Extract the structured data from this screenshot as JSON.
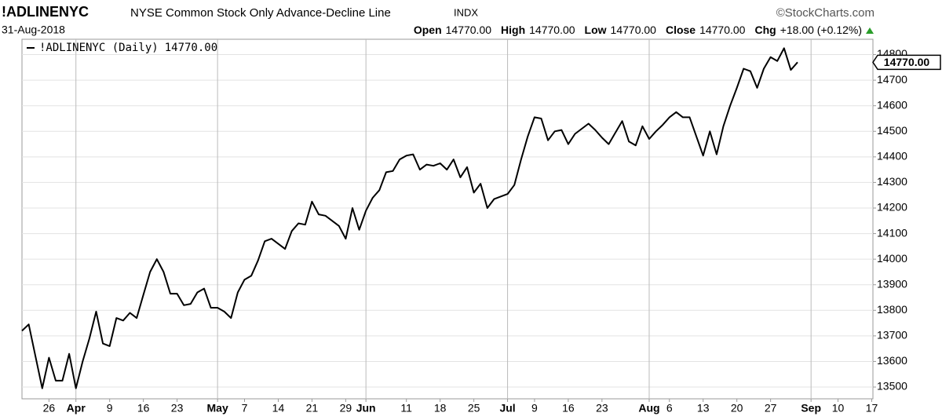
{
  "chart_data": {
    "type": "line",
    "symbol": "!ADLINENYC",
    "title": "NYSE Common Stock Only Advance-Decline Line",
    "exchange": "INDX",
    "copyright": "©StockCharts.com",
    "date": "31-Aug-2018",
    "quote": [
      {
        "label": "Open",
        "value": "14770.00"
      },
      {
        "label": "High",
        "value": "14770.00"
      },
      {
        "label": "Low",
        "value": "14770.00"
      },
      {
        "label": "Close",
        "value": "14770.00"
      },
      {
        "label": "Chg",
        "value": "+18.00 (+0.12%)"
      }
    ],
    "x": [
      "2018-03-20",
      "2018-03-21",
      "2018-03-22",
      "2018-03-23",
      "2018-03-26",
      "2018-03-27",
      "2018-03-28",
      "2018-03-29",
      "2018-04-02",
      "2018-04-03",
      "2018-04-04",
      "2018-04-05",
      "2018-04-06",
      "2018-04-09",
      "2018-04-10",
      "2018-04-11",
      "2018-04-12",
      "2018-04-13",
      "2018-04-16",
      "2018-04-17",
      "2018-04-18",
      "2018-04-19",
      "2018-04-20",
      "2018-04-23",
      "2018-04-24",
      "2018-04-25",
      "2018-04-26",
      "2018-04-27",
      "2018-04-30",
      "2018-05-01",
      "2018-05-02",
      "2018-05-03",
      "2018-05-04",
      "2018-05-07",
      "2018-05-08",
      "2018-05-09",
      "2018-05-10",
      "2018-05-11",
      "2018-05-14",
      "2018-05-15",
      "2018-05-16",
      "2018-05-17",
      "2018-05-18",
      "2018-05-21",
      "2018-05-22",
      "2018-05-23",
      "2018-05-24",
      "2018-05-25",
      "2018-05-29",
      "2018-05-30",
      "2018-05-31",
      "2018-06-01",
      "2018-06-04",
      "2018-06-05",
      "2018-06-06",
      "2018-06-07",
      "2018-06-08",
      "2018-06-11",
      "2018-06-12",
      "2018-06-13",
      "2018-06-14",
      "2018-06-15",
      "2018-06-18",
      "2018-06-19",
      "2018-06-20",
      "2018-06-21",
      "2018-06-22",
      "2018-06-25",
      "2018-06-26",
      "2018-06-27",
      "2018-06-28",
      "2018-06-29",
      "2018-07-02",
      "2018-07-03",
      "2018-07-05",
      "2018-07-06",
      "2018-07-09",
      "2018-07-10",
      "2018-07-11",
      "2018-07-12",
      "2018-07-13",
      "2018-07-16",
      "2018-07-17",
      "2018-07-18",
      "2018-07-19",
      "2018-07-20",
      "2018-07-23",
      "2018-07-24",
      "2018-07-25",
      "2018-07-26",
      "2018-07-27",
      "2018-07-30",
      "2018-07-31",
      "2018-08-01",
      "2018-08-02",
      "2018-08-03",
      "2018-08-06",
      "2018-08-07",
      "2018-08-08",
      "2018-08-09",
      "2018-08-10",
      "2018-08-13",
      "2018-08-14",
      "2018-08-15",
      "2018-08-16",
      "2018-08-17",
      "2018-08-20",
      "2018-08-21",
      "2018-08-22",
      "2018-08-23",
      "2018-08-24",
      "2018-08-27",
      "2018-08-28",
      "2018-08-29",
      "2018-08-30",
      "2018-08-31"
    ],
    "series": [
      {
        "name": "!ADLINENYC (Daily)",
        "color": "#000000",
        "last_label": "14770.00",
        "values": [
          13720,
          13745,
          13620,
          13495,
          13615,
          13525,
          13525,
          13630,
          13495,
          13600,
          13690,
          13795,
          13670,
          13660,
          13770,
          13760,
          13790,
          13770,
          13860,
          13950,
          14000,
          13950,
          13865,
          13865,
          13820,
          13825,
          13870,
          13885,
          13810,
          13810,
          13795,
          13770,
          13870,
          13920,
          13935,
          13995,
          14070,
          14080,
          14060,
          14040,
          14110,
          14140,
          14135,
          14225,
          14175,
          14170,
          14150,
          14130,
          14080,
          14200,
          14115,
          14190,
          14240,
          14270,
          14340,
          14345,
          14390,
          14405,
          14410,
          14350,
          14370,
          14365,
          14375,
          14350,
          14390,
          14320,
          14360,
          14260,
          14295,
          14200,
          14235,
          14245,
          14255,
          14290,
          14390,
          14480,
          14555,
          14550,
          14465,
          14500,
          14505,
          14450,
          14490,
          14510,
          14530,
          14505,
          14475,
          14450,
          14495,
          14540,
          14460,
          14445,
          14520,
          14470,
          14500,
          14525,
          14555,
          14575,
          14555,
          14555,
          14480,
          14405,
          14500,
          14410,
          14520,
          14600,
          14670,
          14745,
          14735,
          14670,
          14745,
          14790,
          14775,
          14825,
          14740,
          14770
        ]
      }
    ],
    "ylim": [
      13454,
      14860
    ],
    "yticks": [
      13500,
      13600,
      13700,
      13800,
      13900,
      14000,
      14100,
      14200,
      14300,
      14400,
      14500,
      14600,
      14700,
      14800
    ],
    "xticks": [
      {
        "value": "2018-03-26",
        "label": "26"
      },
      {
        "value": "2018-04-02",
        "label": "Apr"
      },
      {
        "value": "2018-04-09",
        "label": "9"
      },
      {
        "value": "2018-04-16",
        "label": "16"
      },
      {
        "value": "2018-04-23",
        "label": "23"
      },
      {
        "value": "2018-05-01",
        "label": "May"
      },
      {
        "value": "2018-05-07",
        "label": "7"
      },
      {
        "value": "2018-05-14",
        "label": "14"
      },
      {
        "value": "2018-05-21",
        "label": "21"
      },
      {
        "value": "2018-05-29",
        "label": "29"
      },
      {
        "value": "2018-06-01",
        "label": "Jun"
      },
      {
        "value": "2018-06-11",
        "label": "11"
      },
      {
        "value": "2018-06-18",
        "label": "18"
      },
      {
        "value": "2018-06-25",
        "label": "25"
      },
      {
        "value": "2018-07-02",
        "label": "Jul"
      },
      {
        "value": "2018-07-09",
        "label": "9"
      },
      {
        "value": "2018-07-16",
        "label": "16"
      },
      {
        "value": "2018-07-23",
        "label": "23"
      },
      {
        "value": "2018-08-01",
        "label": "Aug"
      },
      {
        "value": "2018-08-06",
        "label": "6"
      },
      {
        "value": "2018-08-13",
        "label": "13"
      },
      {
        "value": "2018-08-20",
        "label": "20"
      },
      {
        "value": "2018-08-27",
        "label": "27"
      },
      {
        "value": "2018-09-04",
        "label": "Sep"
      },
      {
        "value": "2018-09-10",
        "label": "10"
      },
      {
        "value": "2018-09-17",
        "label": "17"
      }
    ],
    "grid": true
  }
}
